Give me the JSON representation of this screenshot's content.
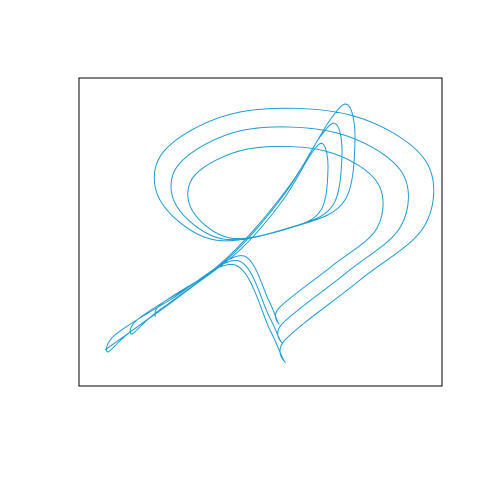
{
  "chart_data": {
    "type": "line",
    "xlim": [
      0,
      363
    ],
    "ylim": [
      0,
      308
    ],
    "series": [
      {
        "color": "#1f9bd1",
        "x": [
          26,
          81,
          151,
          211,
          251,
          269,
          276,
          266,
          221,
          136,
          81,
          86,
          161,
          271,
          346,
          346,
          281,
          206,
          206,
          191,
          156,
          91,
          36,
          29,
          50,
          97,
          156,
          207,
          241,
          257,
          263,
          254,
          216,
          144,
          97,
          101,
          165,
          258,
          322,
          322,
          267,
          203,
          203,
          190,
          160,
          105,
          58,
          53,
          74,
          113,
          162,
          204,
          232,
          244,
          249,
          242,
          211,
          151,
          113,
          116,
          169,
          246,
          298,
          298,
          253,
          200,
          200,
          190,
          165,
          120,
          81,
          76
        ],
        "values": [
          36,
          76,
          131,
          201,
          266,
          281,
          246,
          186,
          161,
          146,
          186,
          236,
          274,
          271,
          226,
          161,
          106,
          46,
          24,
          56,
          121,
          86,
          51,
          34,
          53,
          87,
          134,
          194,
          249,
          262,
          232,
          181,
          160,
          147,
          181,
          223,
          256,
          253,
          215,
          160,
          113,
          62,
          43,
          70,
          125,
          96,
          66,
          52,
          71,
          99,
          137,
          186,
          232,
          242,
          218,
          176,
          158,
          148,
          176,
          211,
          237,
          235,
          204,
          158,
          120,
          78,
          62,
          85,
          130,
          106,
          81,
          69
        ]
      }
    ]
  }
}
